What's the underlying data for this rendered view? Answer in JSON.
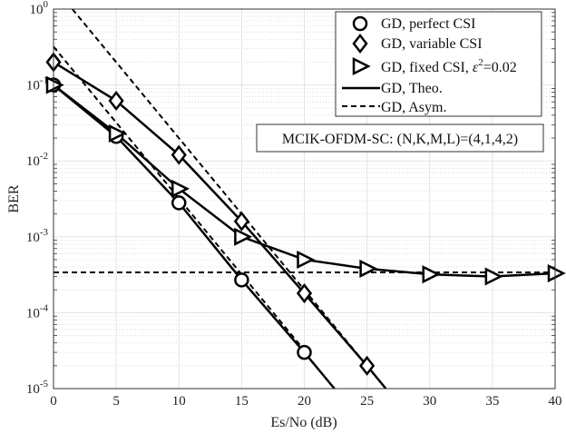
{
  "chart_data": {
    "type": "line",
    "xlabel": "Es/No (dB)",
    "ylabel": "BER",
    "xlim": [
      0,
      40
    ],
    "ylim": [
      1e-05,
      1
    ],
    "yscale": "log",
    "grid": true,
    "x_ticks": [
      "0",
      "5",
      "10",
      "15",
      "20",
      "25",
      "30",
      "35",
      "40"
    ],
    "y_ticks": [
      {
        "base": "10",
        "exp": "0"
      },
      {
        "base": "10",
        "exp": "-1"
      },
      {
        "base": "10",
        "exp": "-2"
      },
      {
        "base": "10",
        "exp": "-3"
      },
      {
        "base": "10",
        "exp": "-4"
      },
      {
        "base": "10",
        "exp": "-5"
      }
    ],
    "legend_position": "top-right",
    "annotation": "MCIK-OFDM-SC: (N,K,M,L)=(4,1,4,2)",
    "series": [
      {
        "name": "GD, perfect CSI",
        "marker": "circle",
        "x": [
          0,
          5,
          10,
          15,
          20
        ],
        "y": [
          0.1,
          0.021,
          0.0028,
          0.00027,
          3e-05
        ]
      },
      {
        "name": "GD, variable CSI",
        "marker": "diamond",
        "x": [
          0,
          5,
          10,
          15,
          20,
          25
        ],
        "y": [
          0.2,
          0.062,
          0.012,
          0.0016,
          0.00018,
          2e-05
        ]
      },
      {
        "name": "GD, fixed CSI, ε²=0.02",
        "legend_prefix": "GD, fixed CSI, ",
        "legend_eps": "ε",
        "legend_sup": "2",
        "legend_suffix": "=0.02",
        "marker": "triangle-right",
        "x": [
          0,
          5,
          10,
          15,
          20,
          25,
          30,
          35,
          40
        ],
        "y": [
          0.1,
          0.023,
          0.0043,
          0.001,
          0.0005,
          0.00038,
          0.00032,
          0.0003,
          0.00033
        ]
      },
      {
        "name": "GD, Theo.",
        "style": "solid",
        "lines": [
          {
            "x": [
              0,
              5,
              10,
              15,
              20,
              22.4
            ],
            "y": [
              0.1,
              0.021,
              0.0028,
              0.00027,
              3e-05,
              1e-05
            ]
          },
          {
            "x": [
              0,
              5,
              10,
              15,
              20,
              25,
              26.5
            ],
            "y": [
              0.2,
              0.062,
              0.012,
              0.0016,
              0.00018,
              2e-05,
              1e-05
            ]
          },
          {
            "x": [
              0,
              5,
              10,
              15,
              20,
              25,
              30,
              35,
              40
            ],
            "y": [
              0.1,
              0.023,
              0.0043,
              0.001,
              0.0005,
              0.00038,
              0.00032,
              0.0003,
              0.00033
            ]
          }
        ]
      },
      {
        "name": "GD, Asym.",
        "style": "dashed",
        "lines": [
          {
            "x": [
              0,
              20
            ],
            "y": [
              0.32,
              3.2e-05
            ]
          },
          {
            "x": [
              1.5,
              25
            ],
            "y": [
              1,
              2e-05
            ]
          },
          {
            "x": [
              0,
              40
            ],
            "y": [
              0.00034,
              0.00034
            ]
          }
        ]
      }
    ]
  }
}
